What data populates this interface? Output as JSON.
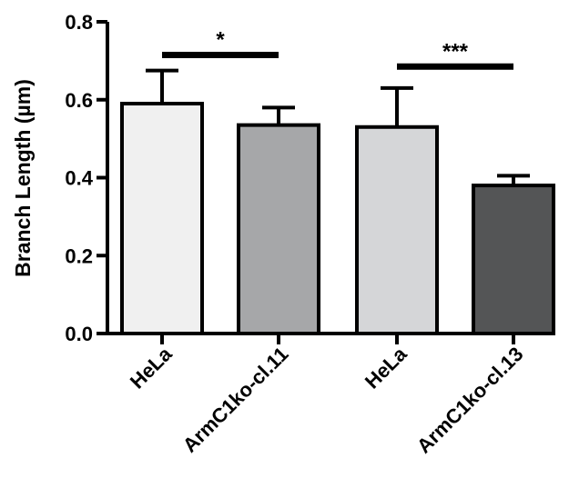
{
  "chart_data": {
    "type": "bar",
    "title": "",
    "xlabel": "",
    "ylabel": "Branch Length (µm)",
    "ylim": [
      0,
      0.8
    ],
    "yticks": [
      "0.0",
      "0.2",
      "0.4",
      "0.6",
      "0.8"
    ],
    "categories": [
      "HeLa",
      "ArmC1ko-cl.11",
      "HeLa",
      "ArmC1ko-cl.13"
    ],
    "values": [
      0.59,
      0.535,
      0.53,
      0.38
    ],
    "errors": [
      0.085,
      0.045,
      0.1,
      0.025
    ],
    "bar_colors": [
      "#f0f0f0",
      "#a6a7a9",
      "#d5d6d8",
      "#545556"
    ],
    "significance": [
      {
        "from": 0,
        "to": 1,
        "label": "*",
        "y": 0.715
      },
      {
        "from": 2,
        "to": 3,
        "label": "***",
        "y": 0.685
      }
    ],
    "grid": false,
    "legend": "none"
  }
}
